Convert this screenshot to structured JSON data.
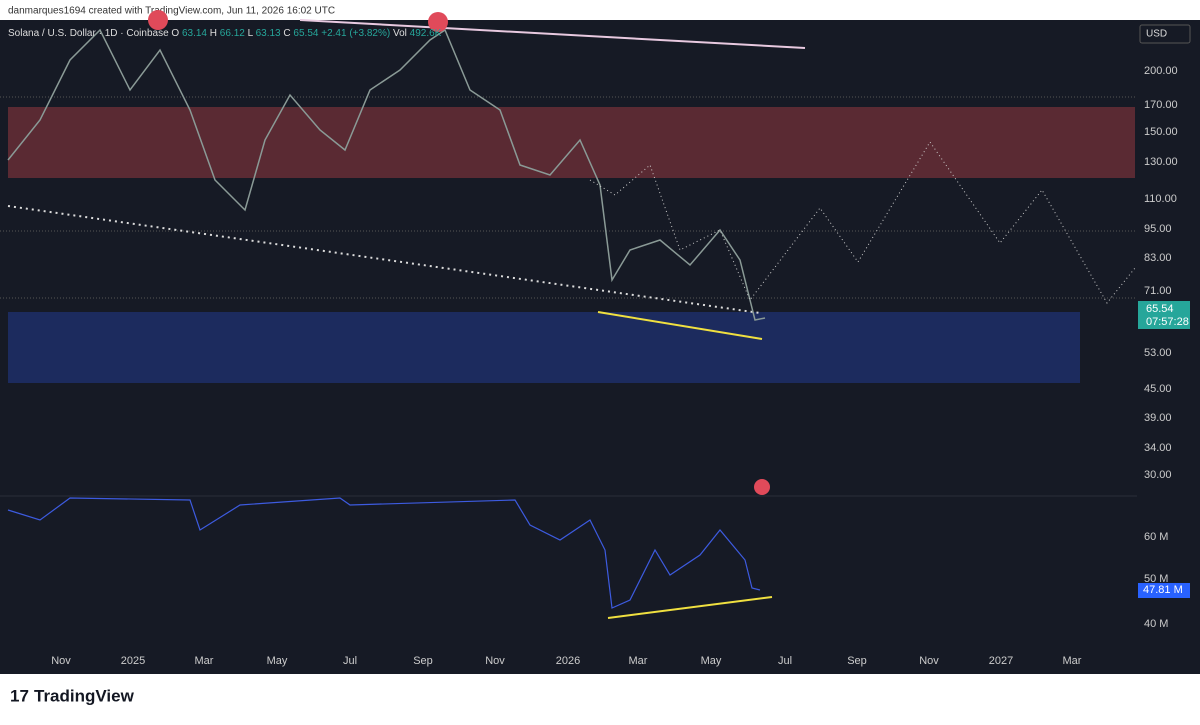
{
  "header": {
    "attribution": "danmarques1694 created with TradingView.com, Jun 11, 2026 16:02 UTC"
  },
  "legend": {
    "symbol": "Solana / U.S. Dollar · 1D · Coinbase",
    "open_label": "O",
    "open": "63.14",
    "high_label": "H",
    "high": "66.12",
    "low_label": "L",
    "low": "63.13",
    "close_label": "C",
    "close": "65.54",
    "change": "+2.41 (+3.82%)",
    "vol_label": "Vol",
    "volume": "492.6K"
  },
  "price_axis": {
    "currency": "USD",
    "labels": [
      "200.00",
      "170.00",
      "150.00",
      "130.00",
      "110.00",
      "95.00",
      "83.00",
      "71.00",
      "53.00",
      "45.00",
      "39.00",
      "34.00",
      "30.00"
    ],
    "last_price": "65.54",
    "countdown": "07:57:28"
  },
  "volume_axis": {
    "labels": [
      "60 M",
      "50 M",
      "40 M"
    ],
    "last": "47.81 M"
  },
  "time_axis": {
    "labels": [
      "Nov",
      "2025",
      "Mar",
      "May",
      "Jul",
      "Sep",
      "Nov",
      "2026",
      "Mar",
      "May",
      "Jul",
      "Sep",
      "Nov",
      "2027",
      "Mar"
    ]
  },
  "footer": {
    "brand": "TradingView"
  }
}
